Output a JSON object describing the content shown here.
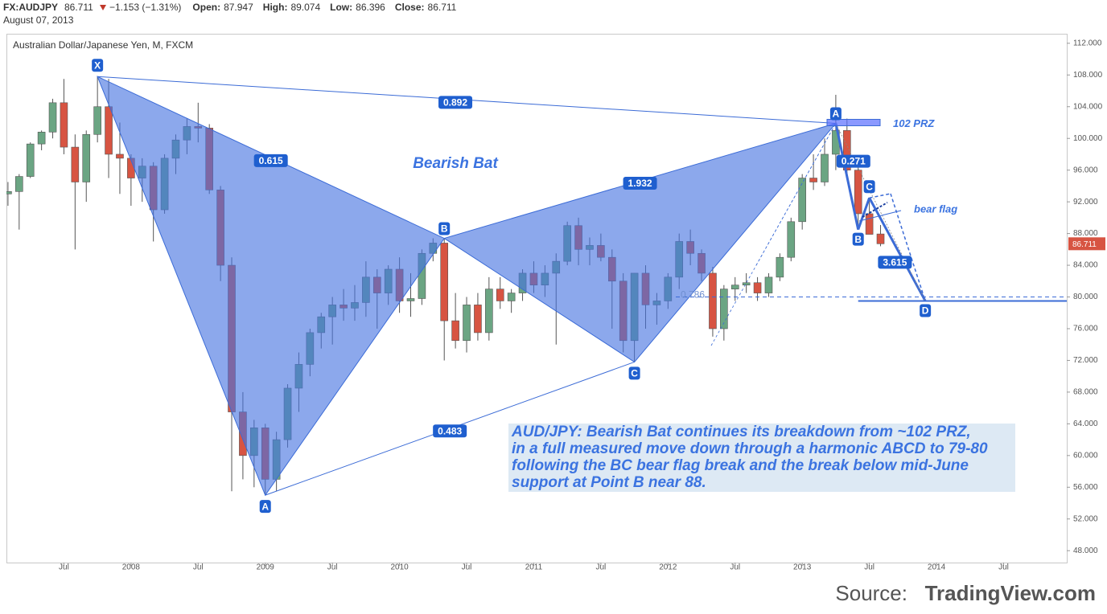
{
  "header": {
    "symbol": "FX:AUDJPY",
    "price": "86.711",
    "change": "−1.153 (−1.31%)",
    "fields": [
      {
        "label": "Open:",
        "value": "87.947"
      },
      {
        "label": "High:",
        "value": "89.074"
      },
      {
        "label": "Low:",
        "value": "86.396"
      },
      {
        "label": "Close:",
        "value": "86.711"
      }
    ],
    "date": "August 07, 2013"
  },
  "source": {
    "label": "Source:",
    "name": "TradingView.com"
  },
  "chart_data": {
    "type": "candlestick",
    "title": "Australian Dollar/Japanese Yen, M, FXCM",
    "up_color": "#6ba583",
    "down_color": "#d75442",
    "candles": {
      "x": [
        "2007-02",
        "2007-03",
        "2007-04",
        "2007-05",
        "2007-06",
        "2007-07",
        "2007-08",
        "2007-09",
        "2007-10",
        "2007-11",
        "2007-12",
        "2008-01",
        "2008-02",
        "2008-03",
        "2008-04",
        "2008-05",
        "2008-06",
        "2008-07",
        "2008-08",
        "2008-09",
        "2008-10",
        "2008-11",
        "2008-12",
        "2009-01",
        "2009-02",
        "2009-03",
        "2009-04",
        "2009-05",
        "2009-06",
        "2009-07",
        "2009-08",
        "2009-09",
        "2009-10",
        "2009-11",
        "2009-12",
        "2010-01",
        "2010-02",
        "2010-03",
        "2010-04",
        "2010-05",
        "2010-06",
        "2010-07",
        "2010-08",
        "2010-09",
        "2010-10",
        "2010-11",
        "2010-12",
        "2011-01",
        "2011-02",
        "2011-03",
        "2011-04",
        "2011-05",
        "2011-06",
        "2011-07",
        "2011-08",
        "2011-09",
        "2011-10",
        "2011-11",
        "2011-12",
        "2012-01",
        "2012-02",
        "2012-03",
        "2012-04",
        "2012-05",
        "2012-06",
        "2012-07",
        "2012-08",
        "2012-09",
        "2012-10",
        "2012-11",
        "2012-12",
        "2013-01",
        "2013-02",
        "2013-03",
        "2013-04",
        "2013-05",
        "2013-06",
        "2013-07",
        "2013-08"
      ],
      "open": [
        93.0,
        93.3,
        95.2,
        99.3,
        100.8,
        104.5,
        98.9,
        94.5,
        100.5,
        104.0,
        98.0,
        97.5,
        95.0,
        96.5,
        91.0,
        97.5,
        99.8,
        101.5,
        101.3,
        93.5,
        84.0,
        65.5,
        60.0,
        63.5,
        57.0,
        62.0,
        68.5,
        71.5,
        75.5,
        77.5,
        79.0,
        78.6,
        79.3,
        82.5,
        80.5,
        83.5,
        79.5,
        79.8,
        85.5,
        86.8,
        77.0,
        74.5,
        79.0,
        75.5,
        81.0,
        79.5,
        80.5,
        83.0,
        81.5,
        83.0,
        84.5,
        89.0,
        86.0,
        86.5,
        85.0,
        82.0,
        74.5,
        83.0,
        79.0,
        79.5,
        82.5,
        87.0,
        85.5,
        83.0,
        76.0,
        81.0,
        81.5,
        81.8,
        80.5,
        82.5,
        85.0,
        89.5,
        95.0,
        94.5,
        98.0,
        101.0,
        96.0,
        90.5,
        87.947
      ],
      "high": [
        94.5,
        95.5,
        99.5,
        101.0,
        105.0,
        107.5,
        100.5,
        101.0,
        107.8,
        107.5,
        102.0,
        98.0,
        97.5,
        97.0,
        98.0,
        100.5,
        102.5,
        104.5,
        101.8,
        94.0,
        85.0,
        68.0,
        64.5,
        64.0,
        63.0,
        69.0,
        73.0,
        76.0,
        78.0,
        80.0,
        81.0,
        81.5,
        84.5,
        83.5,
        84.0,
        85.0,
        83.0,
        86.0,
        87.4,
        87.4,
        80.5,
        80.0,
        80.5,
        82.5,
        82.5,
        81.0,
        83.5,
        84.5,
        84.0,
        85.5,
        89.5,
        90.0,
        87.5,
        88.0,
        86.0,
        83.0,
        83.0,
        84.0,
        80.5,
        83.0,
        88.0,
        88.5,
        86.0,
        83.8,
        81.5,
        82.5,
        83.0,
        82.5,
        83.0,
        85.5,
        90.0,
        95.5,
        98.0,
        100.0,
        105.5,
        102.5,
        97.0,
        92.5,
        89.074
      ],
      "low": [
        91.5,
        88.5,
        95.0,
        98.5,
        100.0,
        98.0,
        86.0,
        92.0,
        99.5,
        95.0,
        93.0,
        91.5,
        92.0,
        87.0,
        90.5,
        95.5,
        98.0,
        99.5,
        93.0,
        82.0,
        55.5,
        57.0,
        56.0,
        55.0,
        55.5,
        61.0,
        65.5,
        70.0,
        73.5,
        74.0,
        77.0,
        77.0,
        77.5,
        76.0,
        79.0,
        78.0,
        77.5,
        79.0,
        84.5,
        72.0,
        73.5,
        73.0,
        74.5,
        74.5,
        78.5,
        78.0,
        79.5,
        80.5,
        80.0,
        74.0,
        84.0,
        84.0,
        84.0,
        84.5,
        76.0,
        73.0,
        71.8,
        76.0,
        76.5,
        78.5,
        81.0,
        84.0,
        82.0,
        75.0,
        74.5,
        79.5,
        80.5,
        79.5,
        80.0,
        82.0,
        84.5,
        88.5,
        93.5,
        94.0,
        96.0,
        95.5,
        88.5,
        88.0,
        86.396
      ],
      "close": [
        93.3,
        95.2,
        99.3,
        100.8,
        104.5,
        98.9,
        94.5,
        100.5,
        104.0,
        98.0,
        97.5,
        95.0,
        96.5,
        91.0,
        97.5,
        99.8,
        101.5,
        101.3,
        93.5,
        84.0,
        65.5,
        60.0,
        63.5,
        57.0,
        62.0,
        68.5,
        71.5,
        75.5,
        77.5,
        79.0,
        78.6,
        79.3,
        82.5,
        80.5,
        83.5,
        79.5,
        79.8,
        85.5,
        86.8,
        77.0,
        74.5,
        79.0,
        75.5,
        81.0,
        79.5,
        80.5,
        83.0,
        81.5,
        83.0,
        84.5,
        89.0,
        86.0,
        86.5,
        85.0,
        82.0,
        74.5,
        83.0,
        79.0,
        79.5,
        82.5,
        87.0,
        85.5,
        83.0,
        76.0,
        81.0,
        81.5,
        81.8,
        80.5,
        82.5,
        85.0,
        89.5,
        95.0,
        94.5,
        98.0,
        101.0,
        96.0,
        90.5,
        87.9,
        86.711
      ]
    },
    "xlim": [
      "2007-01",
      "2014-12"
    ],
    "xticks": [
      {
        "value": "2007-07",
        "label": "Jul"
      },
      {
        "value": "2008-01",
        "label": "2008"
      },
      {
        "value": "2008-07",
        "label": "Jul"
      },
      {
        "value": "2009-01",
        "label": "2009"
      },
      {
        "value": "2009-07",
        "label": "Jul"
      },
      {
        "value": "2010-01",
        "label": "2010"
      },
      {
        "value": "2010-07",
        "label": "Jul"
      },
      {
        "value": "2011-01",
        "label": "2011"
      },
      {
        "value": "2011-07",
        "label": "Jul"
      },
      {
        "value": "2012-01",
        "label": "2012"
      },
      {
        "value": "2012-07",
        "label": "Jul"
      },
      {
        "value": "2013-01",
        "label": "2013"
      },
      {
        "value": "2013-07",
        "label": "Jul"
      },
      {
        "value": "2014-01",
        "label": "2014"
      },
      {
        "value": "2014-07",
        "label": "Jul"
      }
    ],
    "ylim": [
      46.5,
      113.2
    ],
    "yticks": [
      {
        "value": 48,
        "label": "48.000"
      },
      {
        "value": 52,
        "label": "52.000"
      },
      {
        "value": 56,
        "label": "56.000"
      },
      {
        "value": 60,
        "label": "60.000"
      },
      {
        "value": 64,
        "label": "64.000"
      },
      {
        "value": 68,
        "label": "68.000"
      },
      {
        "value": 72,
        "label": "72.000"
      },
      {
        "value": 76,
        "label": "76.000"
      },
      {
        "value": 80,
        "label": "80.000"
      },
      {
        "value": 84,
        "label": "84.000"
      },
      {
        "value": 88,
        "label": "88.000"
      },
      {
        "value": 92,
        "label": "92.000"
      },
      {
        "value": 96,
        "label": "96.000"
      },
      {
        "value": 100,
        "label": "100.000"
      },
      {
        "value": 104,
        "label": "104.000"
      },
      {
        "value": 108,
        "label": "108.000"
      },
      {
        "value": 112,
        "label": "112.000"
      }
    ],
    "grid": false,
    "pattern": {
      "name": "Bearish Bat",
      "color": "#3b6bd6",
      "points": [
        {
          "label": "X",
          "x": "2007-10",
          "y": 107.8
        },
        {
          "label": "A",
          "x": "2009-01",
          "y": 55.0
        },
        {
          "label": "B",
          "x": "2010-05",
          "y": 87.4
        },
        {
          "label": "C",
          "x": "2011-10",
          "y": 71.8
        },
        {
          "label": "A",
          "x": "2013-04",
          "y": 101.9
        },
        {
          "label": "B",
          "x": "2013-06",
          "y": 88.5
        },
        {
          "label": "C",
          "x": "2013-07",
          "y": 92.5
        },
        {
          "label": "D",
          "x": "2013-12",
          "y": 79.5
        }
      ],
      "ratios": [
        "0.892",
        "0.615",
        "1.932",
        "0.483",
        "0.271",
        "3.615"
      ],
      "level_label": "0.786",
      "level": 80.0,
      "prz": 102,
      "prz_label": "102 PRZ",
      "flag_label": "bear flag"
    },
    "annotation": [
      "AUD/JPY: Bearish Bat continues its breakdown from ~102 PRZ,",
      "in a full measured move down through a harmonic ABCD to 79-80",
      "following the BC bear flag break and the break below mid-June",
      "support at Point B near 88."
    ]
  }
}
